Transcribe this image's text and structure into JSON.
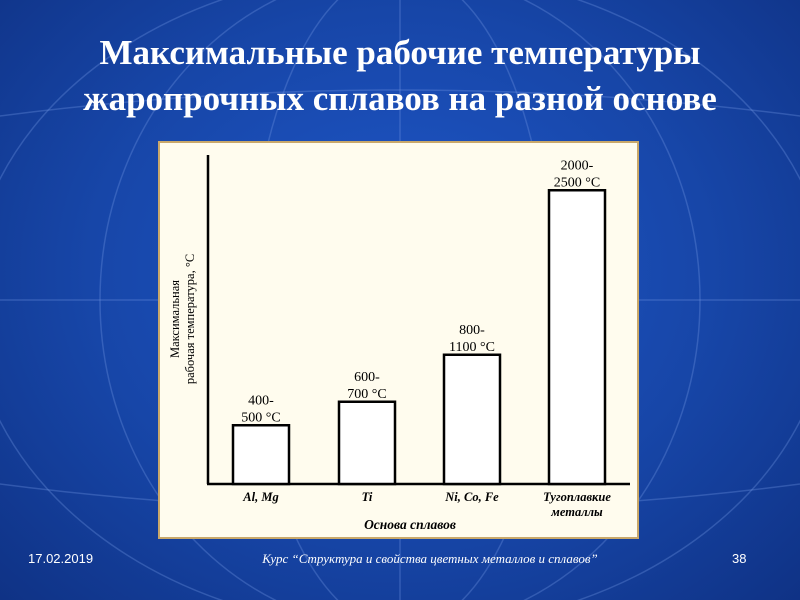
{
  "slide": {
    "title_line1": "Максимальные рабочие температуры",
    "title_line2": "жаропрочных сплавов на разной основе",
    "footer_date": "17.02.2019",
    "footer_course": "Курс “Структура и свойства цветных металлов и сплавов”",
    "footer_page": "38"
  },
  "colors": {
    "background": "#1746a8",
    "panel": "#fffcee",
    "panel_border": "#c9a86a",
    "bar_fill": "#ffffff",
    "ink": "#000000"
  },
  "chart_data": {
    "type": "bar",
    "title": "",
    "xlabel": "Основа сплавов",
    "ylabel_line1": "Максимальная",
    "ylabel_line2": "рабочая температура, °С",
    "ylim": [
      0,
      2800
    ],
    "categories": [
      "Al, Mg",
      "Ti",
      "Ni, Co, Fe",
      "Тугоплавкие металлы"
    ],
    "values": [
      500,
      700,
      1100,
      2500
    ],
    "ranges": [
      [
        400,
        500
      ],
      [
        600,
        700
      ],
      [
        800,
        1100
      ],
      [
        2000,
        2500
      ]
    ],
    "label_top": [
      "400-",
      "600-",
      "800-",
      "2000-"
    ],
    "label_bottom": [
      "500 °С",
      "700 °С",
      "1100 °С",
      "2500 °С"
    ],
    "grid": false,
    "legend": "none"
  }
}
